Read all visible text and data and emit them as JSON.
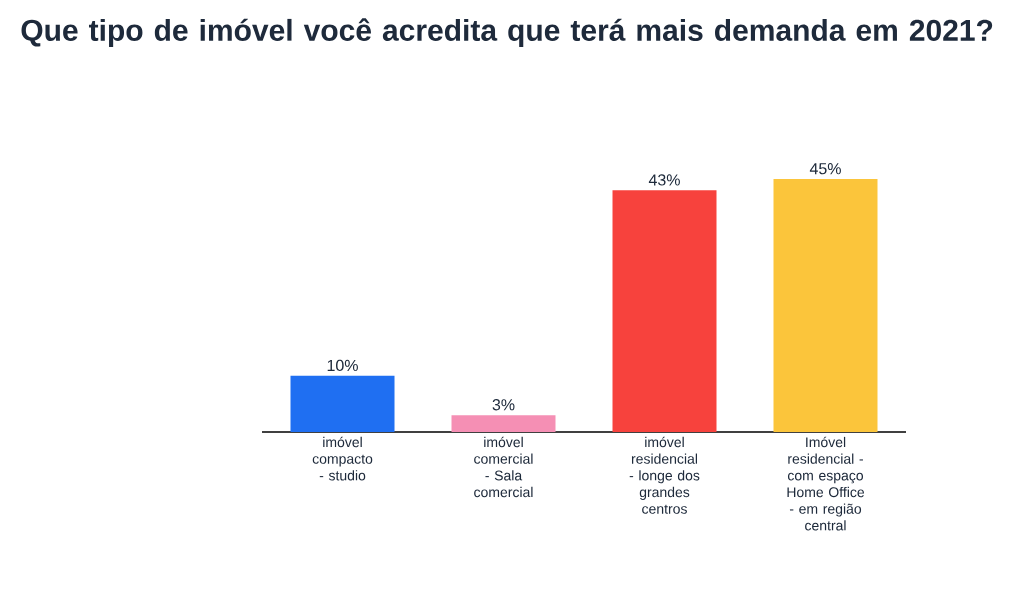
{
  "chart_data": {
    "type": "bar",
    "title": "Que tipo de imóvel você acredita que terá mais demanda em 2021?",
    "categories": [
      "imóvel compacto - studio",
      "imóvel comercial - Sala comercial",
      "imóvel residencial - longe dos grandes centros",
      "Imóvel residencial - com espaço Home Office - em região central"
    ],
    "values": [
      10,
      3,
      43,
      45
    ],
    "colors": [
      "#1f6ff2",
      "#f58fb4",
      "#f7423d",
      "#fbc53b"
    ],
    "value_labels": [
      "10%",
      "3%",
      "43%",
      "45%"
    ]
  }
}
